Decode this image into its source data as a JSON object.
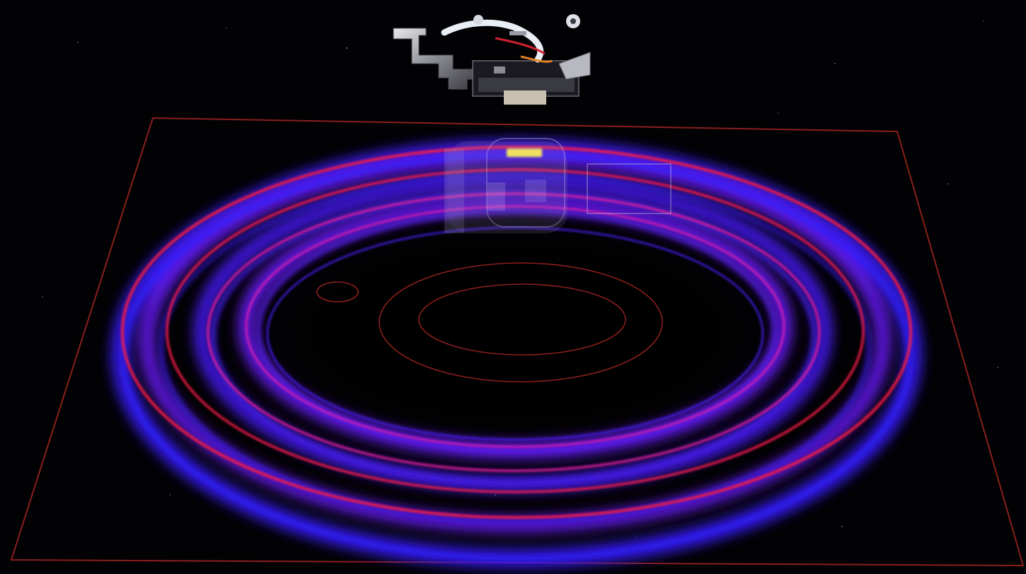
{
  "scene": {
    "subject": "turntable-cartridge-light-trails",
    "background_color": "#020204",
    "plate_outline_color": "#8a1f1c",
    "ring_colors": {
      "outer_red": "#ff1a3c",
      "magenta": "#e01a9a",
      "blue": "#3a1cff",
      "violet": "#6a1aff"
    },
    "cartridge_metal_color": "#c8c8c8",
    "stylus_glow_color": "#f0e060"
  }
}
